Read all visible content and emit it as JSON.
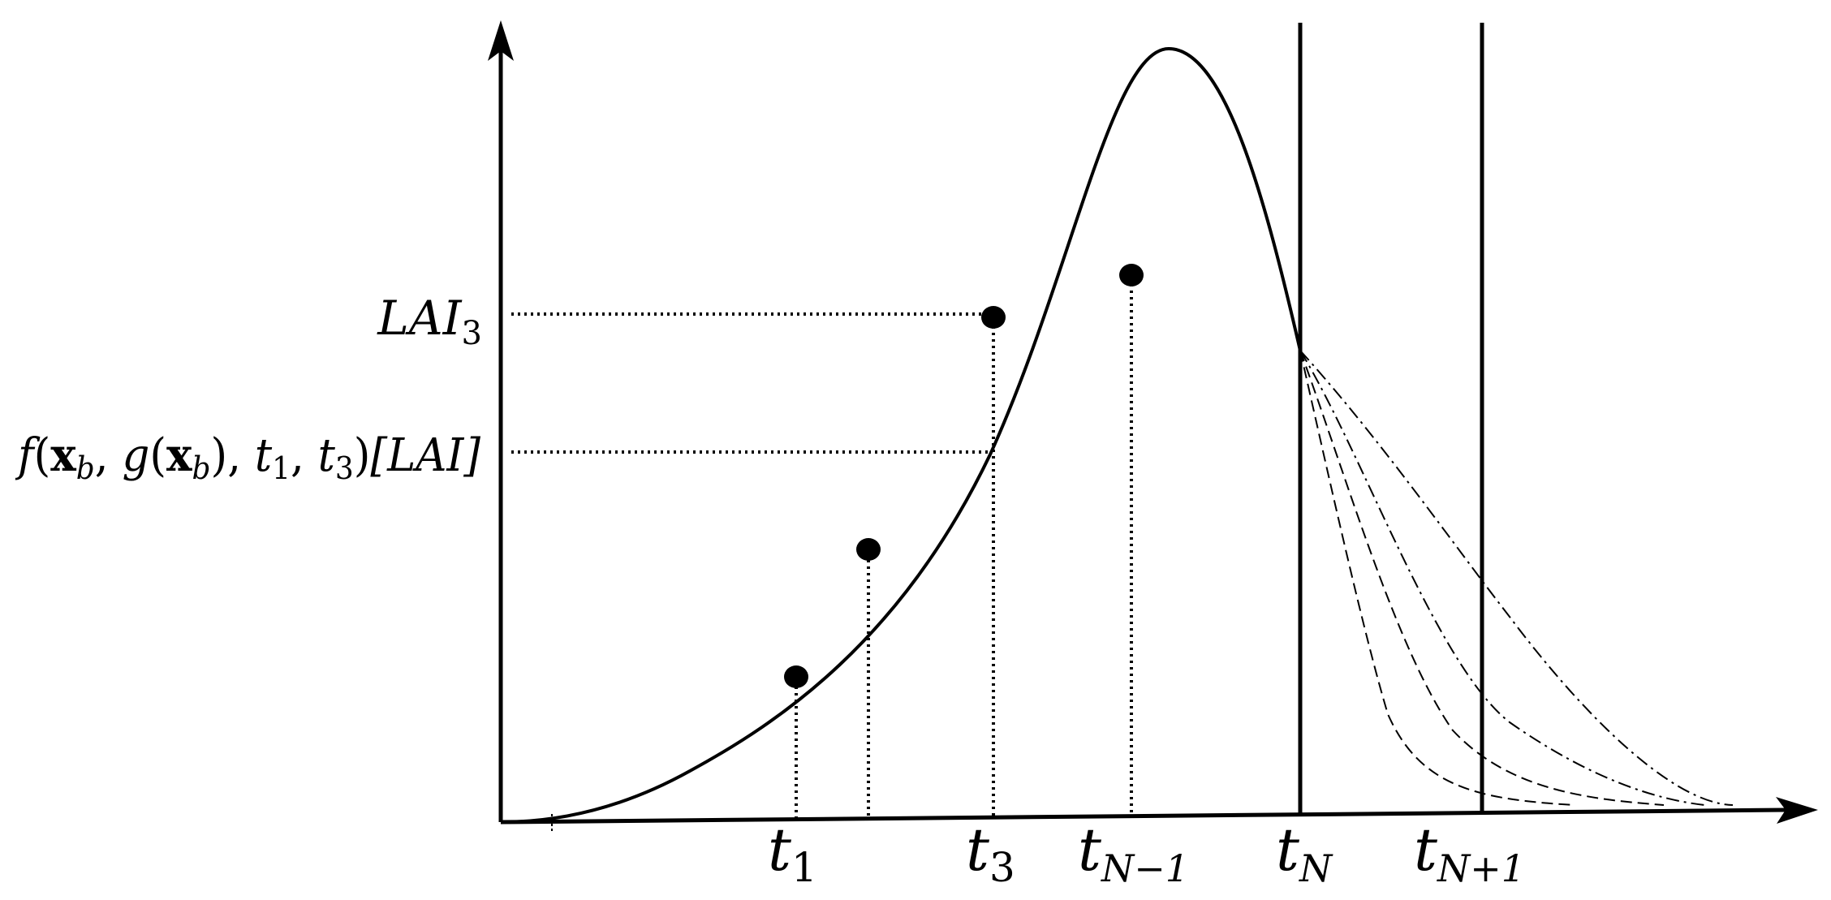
{
  "labels": {
    "y_lai3": {
      "base": "LAI",
      "sub": "3"
    },
    "y_model": {
      "f": "f",
      "open": "(",
      "xb1_x": "x",
      "xb1_b": "b",
      "comma1": ", ",
      "g": "g",
      "gopen": "(",
      "xb2_x": "x",
      "xb2_b": "b",
      "gclose": ")",
      "comma2": ", ",
      "t1_t": "t",
      "t1_s": "1",
      "comma3": ", ",
      "t3_t": "t",
      "t3_s": "3",
      "close": ")",
      "bracket": "[LAI]"
    },
    "x_ticks": [
      {
        "base": "t",
        "sub": "1"
      },
      {
        "base": "t",
        "sub": "3"
      },
      {
        "base": "t",
        "sub": "N−1"
      },
      {
        "base": "t",
        "sub": "N"
      },
      {
        "base": "t",
        "sub": "N+1"
      }
    ]
  }
}
